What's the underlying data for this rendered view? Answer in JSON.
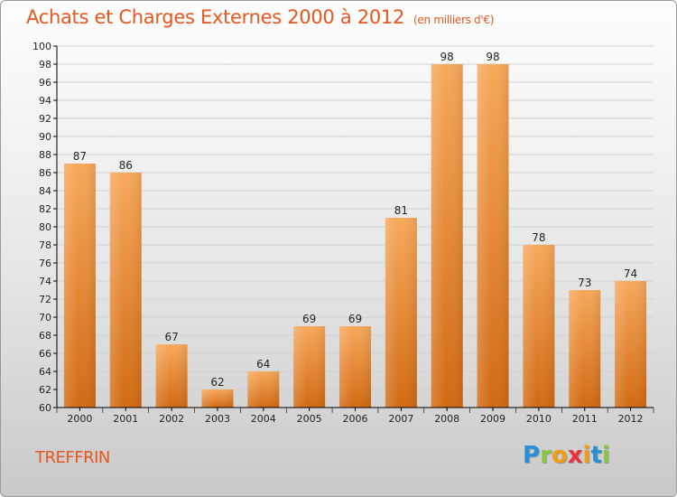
{
  "page": {
    "title": "Achats et Charges Externes 2000 à 2012",
    "subtitle": "(en milliers d'€)",
    "city": "TREFFRIN",
    "logo": {
      "text": "Proxiti",
      "letters": [
        "P",
        "r",
        "o",
        "x",
        "i",
        "t",
        "i"
      ],
      "colors": [
        "#2a8fd6",
        "#8cc63f",
        "#f39c12",
        "#e8333c",
        "#f39c12",
        "#2a8fd6",
        "#8cc63f"
      ]
    }
  },
  "colors": {
    "title": "#e8561d",
    "bar_top": "#f7a85a",
    "bar_bottom": "#d26a12",
    "axis": "#000000",
    "grid": "#d0d0d0"
  },
  "chart_data": {
    "type": "bar",
    "title": "Achats et Charges Externes 2000 à 2012",
    "subtitle": "(en milliers d'€)",
    "categories": [
      "2000",
      "2001",
      "2002",
      "2003",
      "2004",
      "2005",
      "2006",
      "2007",
      "2008",
      "2009",
      "2010",
      "2011",
      "2012"
    ],
    "values": [
      87,
      86,
      67,
      62,
      64,
      69,
      69,
      81,
      98,
      98,
      78,
      73,
      74
    ],
    "ylim": [
      60,
      100
    ],
    "yticks": [
      60,
      62,
      64,
      66,
      68,
      70,
      72,
      74,
      76,
      78,
      80,
      82,
      84,
      86,
      88,
      90,
      92,
      94,
      96,
      98,
      100
    ],
    "grid": true,
    "legend": "none"
  }
}
